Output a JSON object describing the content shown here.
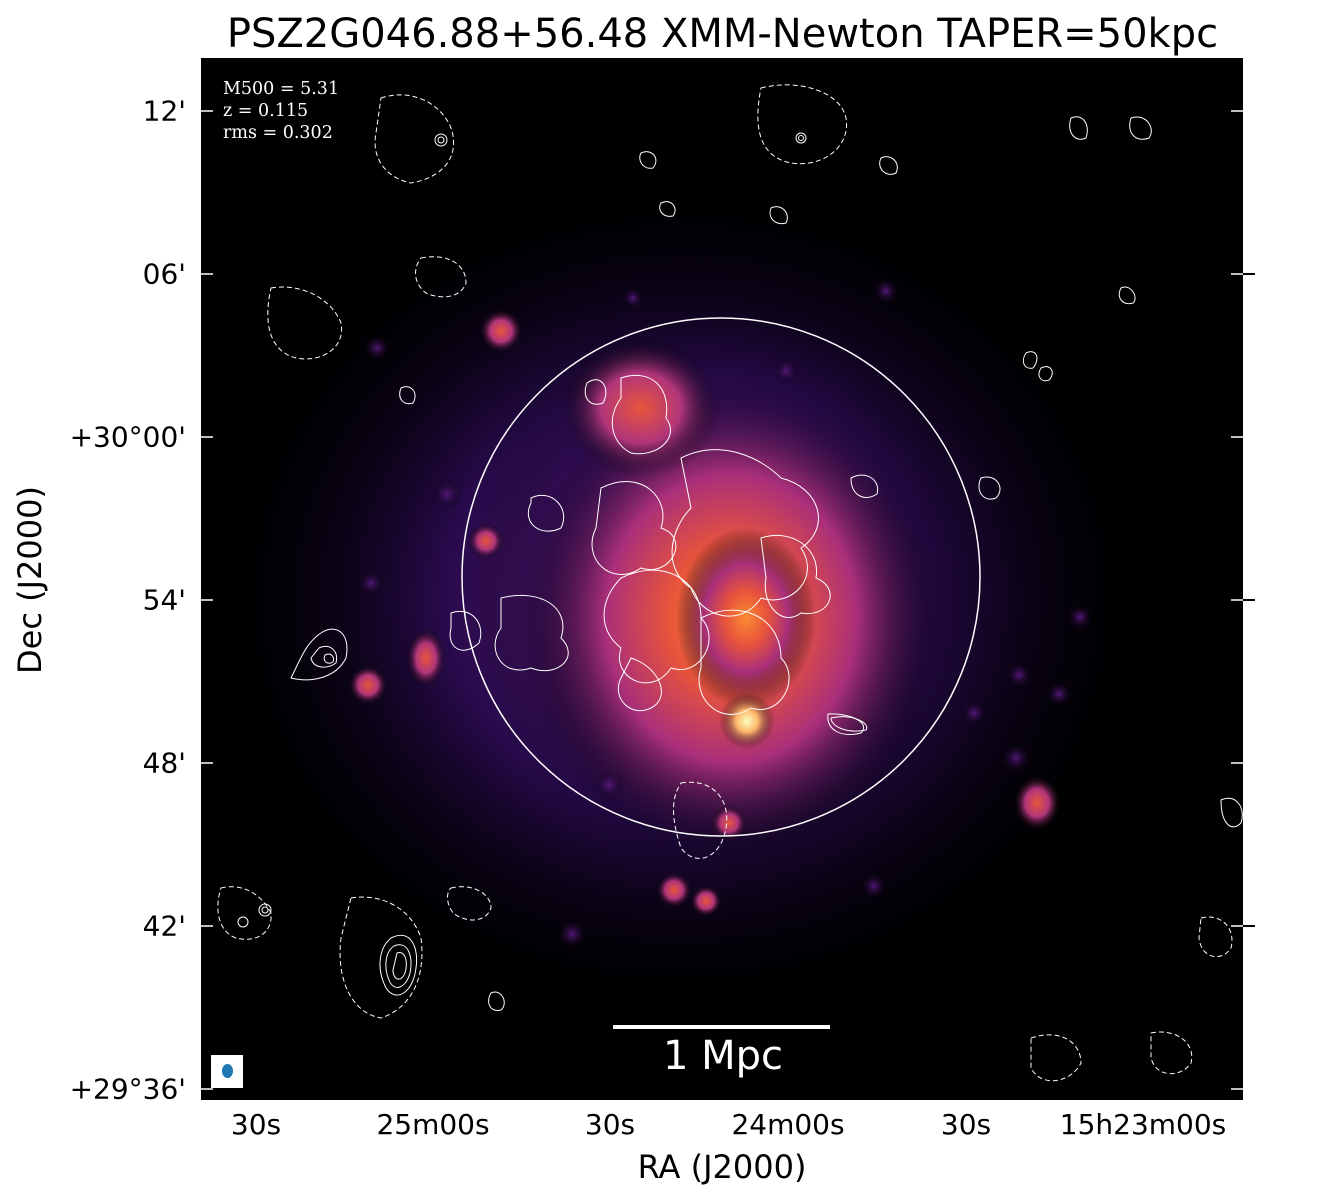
{
  "title": "PSZ2G046.88+56.48 XMM-Newton TAPER=50kpc",
  "info": {
    "m500": "M500 = 5.31",
    "z": "z = 0.115",
    "rms": "rms = 0.302"
  },
  "axes": {
    "xlabel": "RA (J2000)",
    "ylabel": "Dec (J2000)",
    "xticks": [
      "30s",
      "25m00s",
      "30s",
      "24m00s",
      "30s",
      "15h23m00s"
    ],
    "yticks": [
      "12'",
      "06'",
      "+30°00'",
      "54'",
      "48'",
      "42'",
      "+29°36'"
    ]
  },
  "scale_bar": {
    "label": "1 Mpc"
  },
  "colors": {
    "background": "#000000",
    "contours": "#ffffff",
    "beam": "#1f77b4",
    "colormap": [
      "#000004",
      "#2c115f",
      "#721f81",
      "#b73779",
      "#f1605d",
      "#feb078",
      "#fcfdbf"
    ]
  },
  "image": {
    "colormap": "inferno",
    "contour_style": "white solid (positive) and dashed (negative)"
  }
}
